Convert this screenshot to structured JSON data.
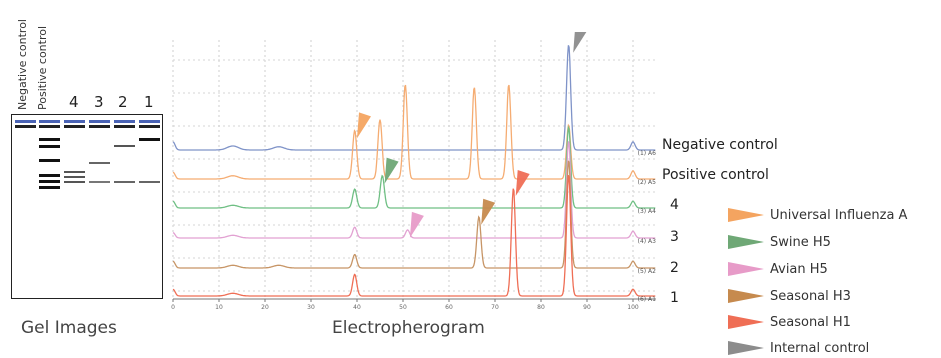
{
  "gel": {
    "header_negative": "Negative control",
    "header_positive": "Positive control",
    "lane_numbers": [
      "4",
      "3",
      "2",
      "1"
    ],
    "caption": "Gel Images"
  },
  "electropherogram": {
    "caption": "Electropherogram"
  },
  "trace_labels": [
    "Negative control",
    "Positive control",
    "4",
    "3",
    "2",
    "1"
  ],
  "legend": [
    {
      "label": "Universal Influenza A",
      "color": "#f4a460"
    },
    {
      "label": "Swine H5",
      "color": "#6fa876"
    },
    {
      "label": "Avian H5",
      "color": "#e79bc8"
    },
    {
      "label": "Seasonal H3",
      "color": "#c68a4e"
    },
    {
      "label": "Seasonal H1",
      "color": "#ef6e55"
    },
    {
      "label": "Internal control",
      "color": "#8c8c8c"
    }
  ],
  "chart_data": {
    "type": "line",
    "xlim": [
      0,
      105
    ],
    "x_ticks": [
      0,
      10,
      20,
      30,
      40,
      50,
      60,
      70,
      80,
      90,
      100
    ],
    "grid": true,
    "series": [
      {
        "name": "(1) A6",
        "color": "#7f93c8",
        "peaks": [
          {
            "x": 0,
            "h": 0.3
          },
          {
            "x": 13,
            "h": 0.15
          },
          {
            "x": 23,
            "h": 0.12
          },
          {
            "x": 86,
            "h": 3.9
          },
          {
            "x": 100,
            "h": 0.3
          }
        ]
      },
      {
        "name": "(2) A5",
        "color": "#f5ac72",
        "peaks": [
          {
            "x": 0,
            "h": 0.25
          },
          {
            "x": 13,
            "h": 0.12
          },
          {
            "x": 39.5,
            "h": 1.8
          },
          {
            "x": 45,
            "h": 2.2
          },
          {
            "x": 50.5,
            "h": 3.5
          },
          {
            "x": 65.5,
            "h": 3.4
          },
          {
            "x": 73,
            "h": 3.5
          },
          {
            "x": 86,
            "h": 2.0
          },
          {
            "x": 100,
            "h": 0.3
          }
        ]
      },
      {
        "name": "(3) A4",
        "color": "#6fbf84",
        "peaks": [
          {
            "x": 0,
            "h": 0.25
          },
          {
            "x": 13,
            "h": 0.1
          },
          {
            "x": 39.5,
            "h": 0.7
          },
          {
            "x": 45.5,
            "h": 1.2
          },
          {
            "x": 86,
            "h": 3.0
          },
          {
            "x": 100,
            "h": 0.25
          }
        ]
      },
      {
        "name": "(4) A3",
        "color": "#e2a1d2",
        "peaks": [
          {
            "x": 0,
            "h": 0.2
          },
          {
            "x": 13,
            "h": 0.1
          },
          {
            "x": 39.5,
            "h": 0.4
          },
          {
            "x": 51,
            "h": 0.3
          },
          {
            "x": 86,
            "h": 3.6
          },
          {
            "x": 100,
            "h": 0.25
          }
        ]
      },
      {
        "name": "(5) A2",
        "color": "#c79566",
        "peaks": [
          {
            "x": 0,
            "h": 0.25
          },
          {
            "x": 13,
            "h": 0.1
          },
          {
            "x": 23,
            "h": 0.1
          },
          {
            "x": 39.5,
            "h": 0.5
          },
          {
            "x": 66.5,
            "h": 1.9
          },
          {
            "x": 86,
            "h": 4.0
          },
          {
            "x": 100,
            "h": 0.25
          }
        ]
      },
      {
        "name": "(6) A1",
        "color": "#ef6e55",
        "peaks": [
          {
            "x": 0,
            "h": 0.25
          },
          {
            "x": 13,
            "h": 0.1
          },
          {
            "x": 39.5,
            "h": 0.8
          },
          {
            "x": 74,
            "h": 4.0
          },
          {
            "x": 86,
            "h": 4.5
          },
          {
            "x": 100,
            "h": 0.25
          }
        ]
      }
    ],
    "markers": [
      {
        "series": 1,
        "x": 40,
        "color": "#f4a460"
      },
      {
        "series": 2,
        "x": 46,
        "color": "#6fa876"
      },
      {
        "series": 3,
        "x": 51.5,
        "color": "#e79bc8"
      },
      {
        "series": 4,
        "x": 67,
        "color": "#c68a4e"
      },
      {
        "series": 5,
        "x": 74.5,
        "color": "#ef6e55"
      },
      {
        "series": 0,
        "x": 87,
        "color": "#8c8c8c"
      }
    ]
  }
}
